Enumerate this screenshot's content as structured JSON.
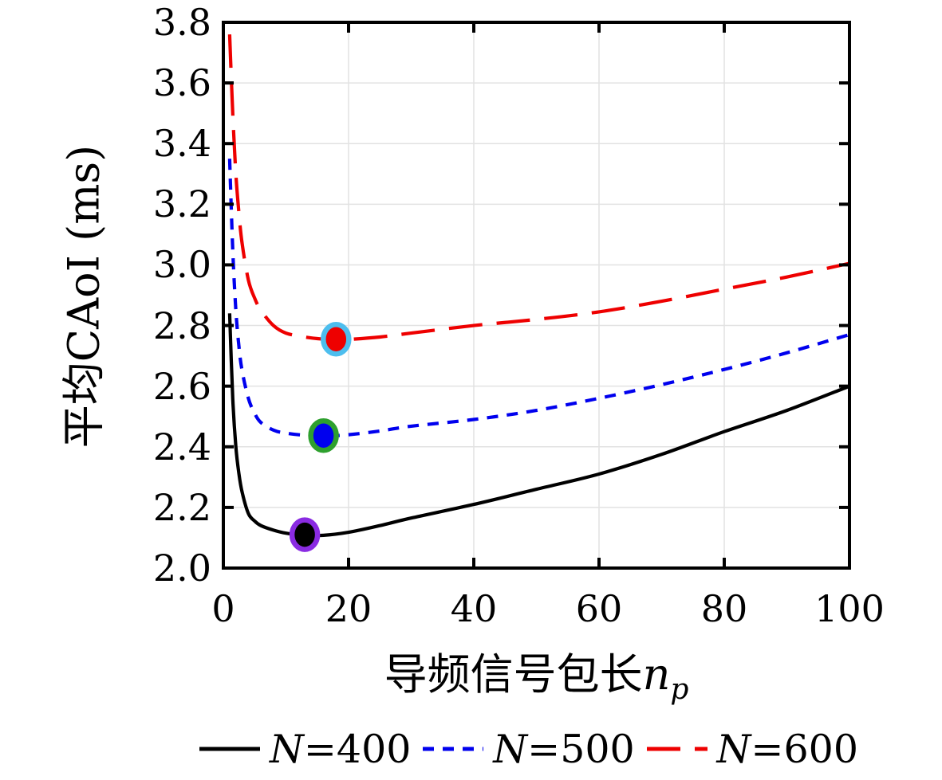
{
  "chart_data": {
    "type": "line",
    "title": "",
    "ylabel": "平均CAoI (ms)",
    "xlabel": {
      "cjk": "导频信号包长",
      "var": "n",
      "sub": "p"
    },
    "xlim": [
      0,
      100
    ],
    "ylim": [
      2.0,
      3.8
    ],
    "xticks": [
      0,
      20,
      40,
      60,
      80,
      100
    ],
    "xtick_labels": [
      "0",
      "20",
      "40",
      "60",
      "80",
      "100"
    ],
    "yticks": [
      2.0,
      2.2,
      2.4,
      2.6,
      2.8,
      3.0,
      3.2,
      3.4,
      3.6,
      3.8
    ],
    "ytick_labels": [
      "2.0",
      "2.2",
      "2.4",
      "2.6",
      "2.8",
      "3.0",
      "3.2",
      "3.4",
      "3.6",
      "3.8"
    ],
    "grid": true,
    "grid_color": "#e2e2e2",
    "axis_color": "#000000",
    "legend_position": "bottom",
    "series": [
      {
        "name": "N=400",
        "color": "#000000",
        "dash": "none",
        "points": [
          [
            1,
            2.84
          ],
          [
            1.5,
            2.56
          ],
          [
            2,
            2.4
          ],
          [
            2.5,
            2.31
          ],
          [
            3,
            2.25
          ],
          [
            4,
            2.18
          ],
          [
            5,
            2.155
          ],
          [
            6,
            2.14
          ],
          [
            8,
            2.125
          ],
          [
            10,
            2.115
          ],
          [
            13,
            2.108
          ],
          [
            16,
            2.108
          ],
          [
            20,
            2.118
          ],
          [
            25,
            2.14
          ],
          [
            30,
            2.165
          ],
          [
            40,
            2.21
          ],
          [
            50,
            2.26
          ],
          [
            60,
            2.31
          ],
          [
            70,
            2.375
          ],
          [
            80,
            2.45
          ],
          [
            90,
            2.52
          ],
          [
            100,
            2.6
          ]
        ],
        "min_marker": {
          "x": 13,
          "y": 2.11,
          "fill": "#000000",
          "edge": "#8a2be2"
        }
      },
      {
        "name": "N=500",
        "color": "#0000ee",
        "dash": "short",
        "points": [
          [
            1,
            3.35
          ],
          [
            1.5,
            3.05
          ],
          [
            2,
            2.85
          ],
          [
            2.5,
            2.73
          ],
          [
            3,
            2.65
          ],
          [
            4,
            2.56
          ],
          [
            5,
            2.51
          ],
          [
            6,
            2.48
          ],
          [
            8,
            2.455
          ],
          [
            10,
            2.445
          ],
          [
            13,
            2.438
          ],
          [
            16,
            2.435
          ],
          [
            20,
            2.44
          ],
          [
            25,
            2.452
          ],
          [
            30,
            2.468
          ],
          [
            40,
            2.49
          ],
          [
            50,
            2.52
          ],
          [
            60,
            2.56
          ],
          [
            70,
            2.605
          ],
          [
            80,
            2.655
          ],
          [
            90,
            2.71
          ],
          [
            100,
            2.77
          ]
        ],
        "min_marker": {
          "x": 16,
          "y": 2.437,
          "fill": "#0000ee",
          "edge": "#2ea02e"
        }
      },
      {
        "name": "N=600",
        "color": "#ee0000",
        "dash": "long",
        "points": [
          [
            1,
            3.76
          ],
          [
            1.5,
            3.5
          ],
          [
            2,
            3.3
          ],
          [
            2.5,
            3.17
          ],
          [
            3,
            3.07
          ],
          [
            4,
            2.95
          ],
          [
            5,
            2.89
          ],
          [
            6,
            2.85
          ],
          [
            8,
            2.8
          ],
          [
            10,
            2.775
          ],
          [
            13,
            2.762
          ],
          [
            16,
            2.755
          ],
          [
            18,
            2.753
          ],
          [
            20,
            2.754
          ],
          [
            25,
            2.762
          ],
          [
            30,
            2.775
          ],
          [
            40,
            2.8
          ],
          [
            50,
            2.82
          ],
          [
            60,
            2.845
          ],
          [
            70,
            2.88
          ],
          [
            80,
            2.92
          ],
          [
            90,
            2.96
          ],
          [
            100,
            3.005
          ]
        ],
        "min_marker": {
          "x": 18,
          "y": 2.755,
          "fill": "#ee0000",
          "edge": "#4dbeee"
        }
      }
    ],
    "legend": {
      "items": [
        {
          "var": "N",
          "rest": "=400",
          "color": "#000000",
          "dash": "none"
        },
        {
          "var": "N",
          "rest": "=500",
          "color": "#0000ee",
          "dash": "short"
        },
        {
          "var": "N",
          "rest": "=600",
          "color": "#ee0000",
          "dash": "long"
        }
      ]
    }
  }
}
